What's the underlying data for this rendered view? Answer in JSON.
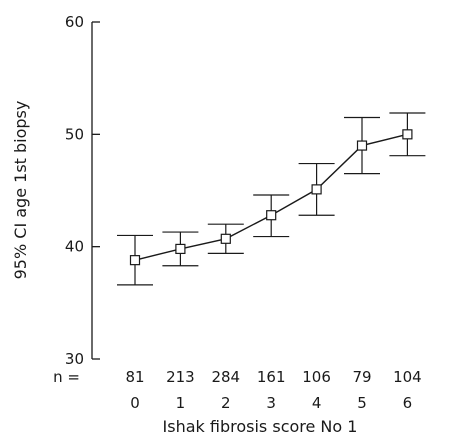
{
  "chart_data": {
    "type": "line",
    "title": "",
    "xlabel": "Ishak fibrosis score No 1",
    "ylabel": "95% CI age 1st biopsy",
    "ylim": [
      30,
      60
    ],
    "yticks": [
      30,
      40,
      50,
      60
    ],
    "grid": false,
    "legend": "none",
    "marker": "open-square",
    "categories": [
      "0",
      "1",
      "2",
      "3",
      "4",
      "5",
      "6"
    ],
    "n_prefix": "n =",
    "n_values": [
      "81",
      "213",
      "284",
      "161",
      "106",
      "79",
      "104"
    ],
    "series": [
      {
        "values": [
          38.8,
          39.8,
          40.7,
          42.8,
          45.1,
          49.0,
          50.0
        ],
        "ci_lower": [
          36.6,
          38.3,
          39.4,
          40.9,
          42.8,
          46.5,
          48.1
        ],
        "ci_upper": [
          41.0,
          41.3,
          42.0,
          44.6,
          47.4,
          51.5,
          51.9
        ]
      }
    ],
    "colors": {
      "line": "#1a1a1a",
      "marker_fill": "#ffffff"
    }
  }
}
